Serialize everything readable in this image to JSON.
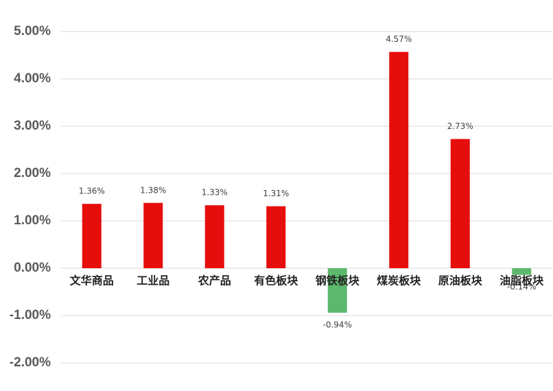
{
  "chart_data": {
    "type": "bar",
    "categories": [
      "文华商品",
      "工业品",
      "农产品",
      "有色板块",
      "钢铁板块",
      "煤炭板块",
      "原油板块",
      "油脂板块"
    ],
    "values": [
      1.36,
      1.38,
      1.33,
      1.31,
      -0.94,
      4.57,
      2.73,
      -0.14
    ],
    "value_labels": [
      "1.36%",
      "1.38%",
      "1.33%",
      "1.31%",
      "-0.94%",
      "4.57%",
      "2.73%",
      "-0.14%"
    ],
    "colors": [
      "#e60d0d",
      "#e60d0d",
      "#e60d0d",
      "#e60d0d",
      "#5cb86c",
      "#e60d0d",
      "#e60d0d",
      "#5cb86c"
    ],
    "ylim": [
      -2,
      5
    ],
    "yticks": [
      {
        "value": -2,
        "label": "-2.00%"
      },
      {
        "value": -1,
        "label": "-1.00%"
      },
      {
        "value": 0,
        "label": "0.00%"
      },
      {
        "value": 1,
        "label": "1.00%"
      },
      {
        "value": 2,
        "label": "2.00%"
      },
      {
        "value": 3,
        "label": "3.00%"
      },
      {
        "value": 4,
        "label": "4.00%"
      },
      {
        "value": 5,
        "label": "5.00%"
      }
    ],
    "grid": true
  }
}
